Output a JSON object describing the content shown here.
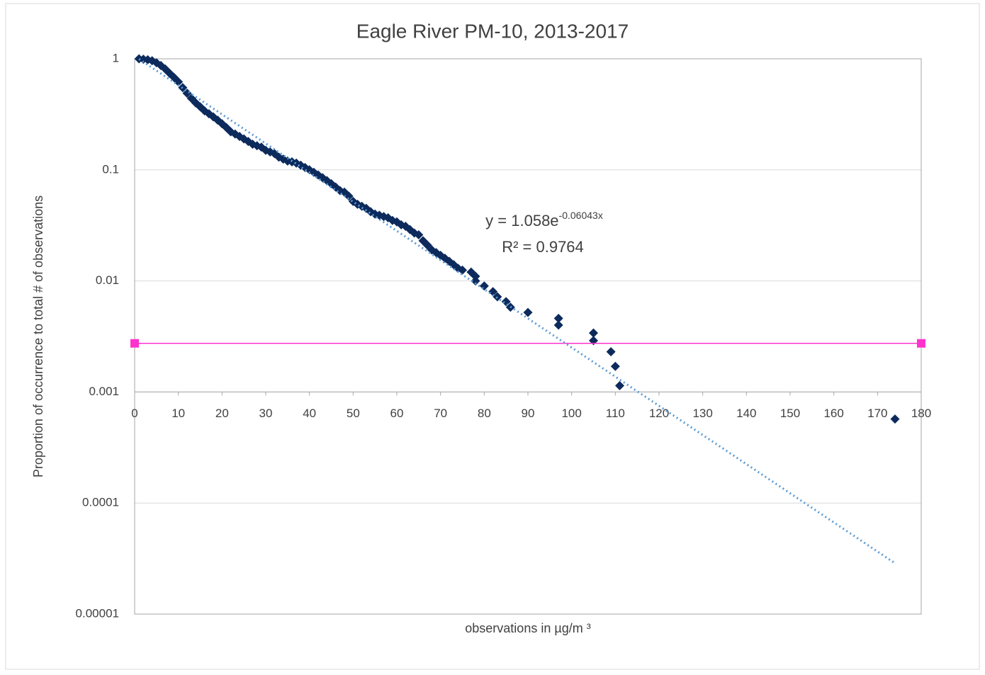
{
  "chart_data": {
    "type": "scatter",
    "title": "Eagle River PM-10, 2013-2017",
    "x_label": "observations in µg/m ³",
    "y_label": "Proportion of occurrence to total # of observations",
    "xlim": [
      0,
      180
    ],
    "xticks": [
      0,
      10,
      20,
      30,
      40,
      50,
      60,
      70,
      80,
      90,
      100,
      110,
      120,
      130,
      140,
      150,
      160,
      170,
      180
    ],
    "ylim": [
      1e-05,
      1
    ],
    "yticks": [
      1,
      0.1,
      0.01,
      0.001,
      0.0001,
      1e-05
    ],
    "y_log": true,
    "x_axis_crosses": 0.001,
    "grid": true,
    "annotation": {
      "equation": "y = 1.058e",
      "exponent": "-0.06043x",
      "r_squared": "R² = 0.9764"
    },
    "series": [
      {
        "color": "#0d2a5c",
        "marker": "diamond",
        "line": "none",
        "x": [
          1,
          2,
          3,
          4,
          5,
          6,
          7,
          8,
          9,
          10,
          11,
          12,
          13,
          14,
          15,
          16,
          17,
          18,
          19,
          20,
          21,
          22,
          23,
          24,
          25,
          26,
          27,
          28,
          29,
          30,
          31,
          32,
          33,
          34,
          35,
          36,
          37,
          38,
          39,
          40,
          41,
          42,
          43,
          44,
          45,
          46,
          47,
          48,
          49,
          50,
          51,
          52,
          53,
          54,
          55,
          56,
          57,
          58,
          59,
          60,
          61,
          62,
          63,
          64,
          65,
          66,
          67,
          68,
          69,
          70,
          71,
          72,
          73,
          74,
          75,
          77,
          78,
          78,
          80,
          82,
          83,
          85,
          86,
          90,
          97,
          97,
          105,
          105,
          109,
          110,
          111,
          174
        ],
        "values": [
          1,
          0.99,
          0.98,
          0.96,
          0.92,
          0.87,
          0.81,
          0.74,
          0.68,
          0.62,
          0.55,
          0.49,
          0.44,
          0.4,
          0.37,
          0.34,
          0.32,
          0.3,
          0.28,
          0.26,
          0.24,
          0.22,
          0.21,
          0.2,
          0.19,
          0.18,
          0.17,
          0.165,
          0.16,
          0.15,
          0.145,
          0.14,
          0.13,
          0.125,
          0.12,
          0.118,
          0.115,
          0.11,
          0.105,
          0.1,
          0.095,
          0.09,
          0.085,
          0.08,
          0.075,
          0.07,
          0.065,
          0.063,
          0.058,
          0.052,
          0.049,
          0.047,
          0.045,
          0.042,
          0.04,
          0.039,
          0.038,
          0.037,
          0.035,
          0.034,
          0.032,
          0.031,
          0.029,
          0.027,
          0.026,
          0.023,
          0.021,
          0.019,
          0.018,
          0.017,
          0.016,
          0.015,
          0.014,
          0.013,
          0.0125,
          0.012,
          0.011,
          0.01,
          0.009,
          0.008,
          0.0072,
          0.0065,
          0.0058,
          0.0052,
          0.0046,
          0.004,
          0.0034,
          0.0029,
          0.0023,
          0.0017,
          0.00114,
          0.00057
        ]
      },
      {
        "color": "#ff33cc",
        "marker": "square",
        "line": "solid",
        "x": [
          0,
          180
        ],
        "values": [
          0.00274,
          0.00274
        ]
      },
      {
        "color": "#5b9bd5",
        "marker": "none",
        "line": "dotted",
        "x": [
          1,
          174
        ],
        "values": [
          0.996,
          2.87e-05
        ]
      }
    ]
  }
}
